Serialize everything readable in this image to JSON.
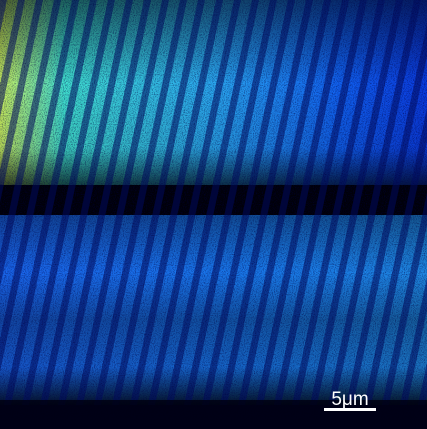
{
  "scale_bar": {
    "label": "5μm"
  }
}
